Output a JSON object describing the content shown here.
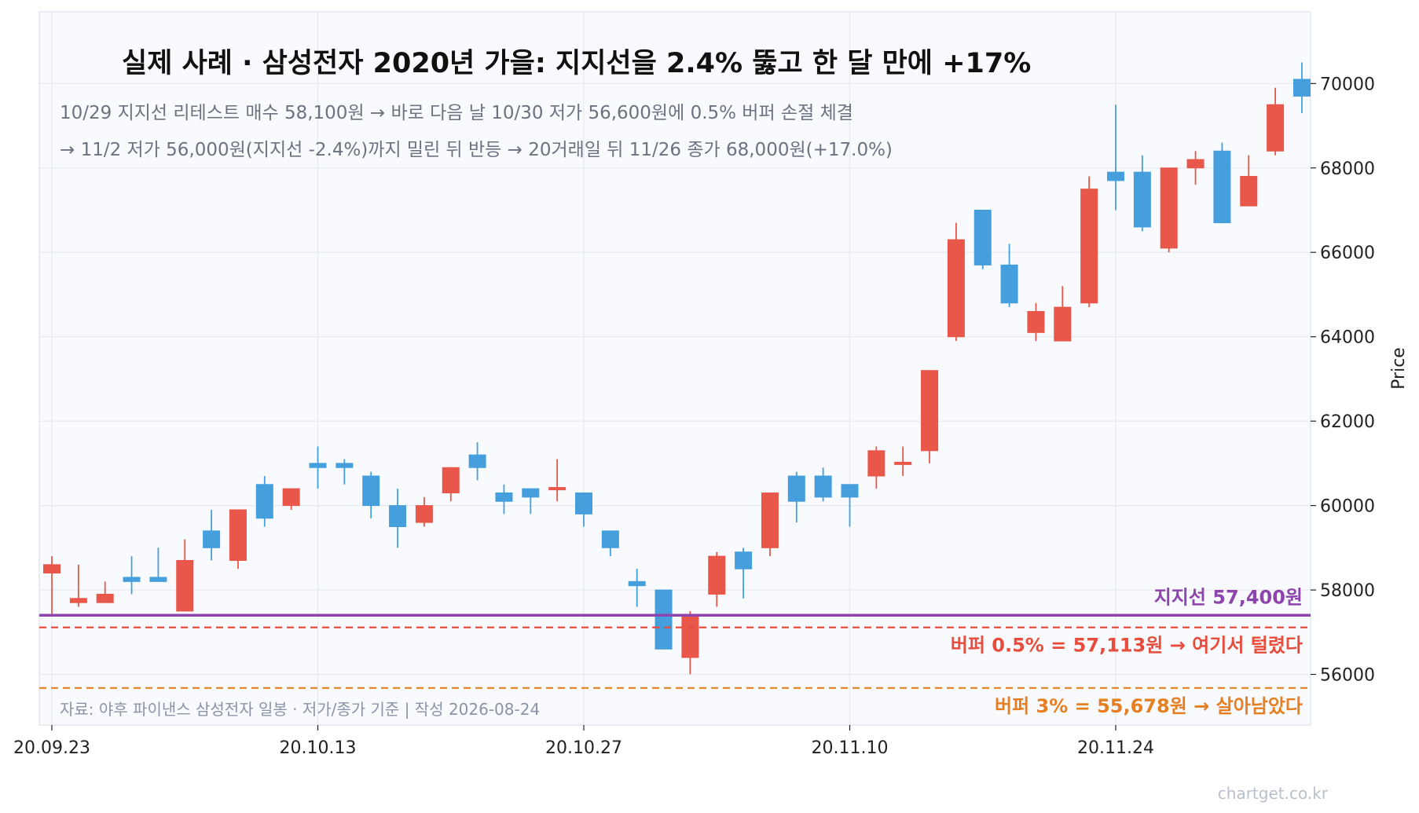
{
  "chart_data": {
    "type": "candlestick",
    "title": "실제 사례 · 삼성전자 2020년 가을: 지지선을 2.4% 뚫고 한 달 만에 +17%",
    "subtitle_lines": [
      "10/29 지지선 리테스트 매수 58,100원  →  바로 다음 날 10/30 저가 56,600원에 0.5% 버퍼 손절 체결",
      "→ 11/2 저가 56,000원(지지선 -2.4%)까지 밀린 뒤 반등  →  20거래일 뒤 11/26 종가 68,000원(+17.0%)"
    ],
    "ylabel": "Price",
    "ylim": [
      54800,
      71700
    ],
    "yticks": [
      56000,
      58000,
      60000,
      62000,
      64000,
      66000,
      68000,
      70000
    ],
    "xtick_labels": [
      {
        "index": 0,
        "label": "20.09.23"
      },
      {
        "index": 10,
        "label": "20.10.13"
      },
      {
        "index": 20,
        "label": "20.10.27"
      },
      {
        "index": 30,
        "label": "20.11.10"
      },
      {
        "index": 40,
        "label": "20.11.24"
      }
    ],
    "colors": {
      "up": "#e8574a",
      "down": "#459fdc"
    },
    "candles": [
      {
        "o": 58400,
        "h": 58800,
        "l": 57400,
        "c": 58600
      },
      {
        "o": 57700,
        "h": 58600,
        "l": 57600,
        "c": 57800
      },
      {
        "o": 57700,
        "h": 58200,
        "l": 57700,
        "c": 57900
      },
      {
        "o": 58300,
        "h": 58800,
        "l": 57900,
        "c": 58200
      },
      {
        "o": 58300,
        "h": 59000,
        "l": 58200,
        "c": 58200
      },
      {
        "o": 57500,
        "h": 59200,
        "l": 57500,
        "c": 58700
      },
      {
        "o": 59400,
        "h": 59900,
        "l": 58700,
        "c": 59000
      },
      {
        "o": 58700,
        "h": 59900,
        "l": 58500,
        "c": 59900
      },
      {
        "o": 60500,
        "h": 60700,
        "l": 59500,
        "c": 59700
      },
      {
        "o": 60000,
        "h": 60400,
        "l": 59900,
        "c": 60400
      },
      {
        "o": 61000,
        "h": 61400,
        "l": 60400,
        "c": 60900
      },
      {
        "o": 61000,
        "h": 61100,
        "l": 60500,
        "c": 60900
      },
      {
        "o": 60700,
        "h": 60800,
        "l": 59700,
        "c": 60000
      },
      {
        "o": 60000,
        "h": 60400,
        "l": 59000,
        "c": 59500
      },
      {
        "o": 59600,
        "h": 60200,
        "l": 59500,
        "c": 60000
      },
      {
        "o": 60300,
        "h": 60900,
        "l": 60100,
        "c": 60900
      },
      {
        "o": 61200,
        "h": 61500,
        "l": 60600,
        "c": 60900
      },
      {
        "o": 60300,
        "h": 60500,
        "l": 59800,
        "c": 60100
      },
      {
        "o": 60400,
        "h": 60400,
        "l": 59800,
        "c": 60200
      },
      {
        "o": 60400,
        "h": 61100,
        "l": 60100,
        "c": 60400
      },
      {
        "o": 60300,
        "h": 60300,
        "l": 59500,
        "c": 59800
      },
      {
        "o": 59400,
        "h": 59400,
        "l": 58800,
        "c": 59000
      },
      {
        "o": 58200,
        "h": 58500,
        "l": 57600,
        "c": 58100
      },
      {
        "o": 58000,
        "h": 58000,
        "l": 56600,
        "c": 56600
      },
      {
        "o": 56400,
        "h": 57500,
        "l": 56000,
        "c": 57400
      },
      {
        "o": 57900,
        "h": 58900,
        "l": 57600,
        "c": 58800
      },
      {
        "o": 58900,
        "h": 59000,
        "l": 57800,
        "c": 58500
      },
      {
        "o": 59000,
        "h": 60300,
        "l": 58800,
        "c": 60300
      },
      {
        "o": 60700,
        "h": 60800,
        "l": 59600,
        "c": 60100
      },
      {
        "o": 60700,
        "h": 60900,
        "l": 60100,
        "c": 60200
      },
      {
        "o": 60500,
        "h": 60500,
        "l": 59500,
        "c": 60200
      },
      {
        "o": 60700,
        "h": 61400,
        "l": 60400,
        "c": 61300
      },
      {
        "o": 61000,
        "h": 61400,
        "l": 60700,
        "c": 61000
      },
      {
        "o": 61300,
        "h": 63200,
        "l": 61000,
        "c": 63200
      },
      {
        "o": 64000,
        "h": 66700,
        "l": 63900,
        "c": 66300
      },
      {
        "o": 67000,
        "h": 67000,
        "l": 65600,
        "c": 65700
      },
      {
        "o": 65700,
        "h": 66200,
        "l": 64700,
        "c": 64800
      },
      {
        "o": 64100,
        "h": 64800,
        "l": 63900,
        "c": 64600
      },
      {
        "o": 63900,
        "h": 65200,
        "l": 63900,
        "c": 64700
      },
      {
        "o": 64800,
        "h": 67800,
        "l": 64700,
        "c": 67500
      },
      {
        "o": 67900,
        "h": 69500,
        "l": 67000,
        "c": 67700
      },
      {
        "o": 67900,
        "h": 68300,
        "l": 66500,
        "c": 66600
      },
      {
        "o": 66100,
        "h": 68000,
        "l": 66000,
        "c": 68000
      },
      {
        "o": 68000,
        "h": 68400,
        "l": 67600,
        "c": 68200
      },
      {
        "o": 68400,
        "h": 68600,
        "l": 66700,
        "c": 66700
      },
      {
        "o": 67100,
        "h": 68300,
        "l": 67100,
        "c": 67800
      },
      {
        "o": 68400,
        "h": 69900,
        "l": 68300,
        "c": 69500
      },
      {
        "o": 70100,
        "h": 70500,
        "l": 69300,
        "c": 69700
      }
    ],
    "reference_lines": [
      {
        "value": 57400,
        "style": "solid",
        "color": "#8e44ad",
        "label": "지지선 57,400원"
      },
      {
        "value": 57113,
        "style": "dashed",
        "color": "#e74c3c",
        "label": "버퍼 0.5% = 57,113원 → 여기서 털렸다"
      },
      {
        "value": 55678,
        "style": "dashed",
        "color": "#e67e22",
        "label": "버퍼 3% = 55,678원 → 살아남았다"
      }
    ],
    "grid": true,
    "source_note": "자료: 야후 파이낸스 삼성전자 일봉 · 저가/종가 기준  |  작성 2026-08-24"
  },
  "watermark": "chartget.co.kr"
}
